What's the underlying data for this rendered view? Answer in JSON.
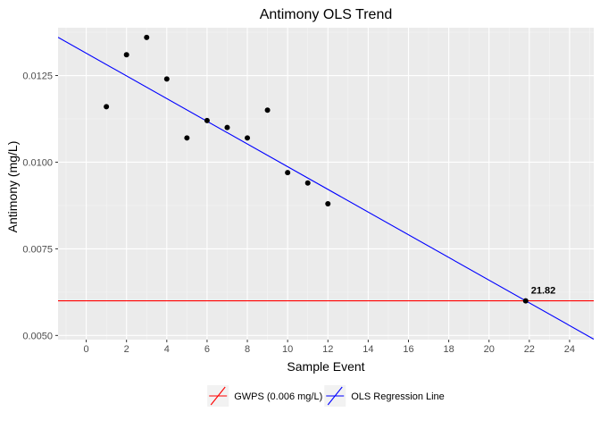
{
  "chart_data": {
    "type": "scatter",
    "title": "Antimony OLS Trend",
    "xlabel": "Sample Event",
    "ylabel": "Antimony (mg/L)",
    "xlim": [
      -1.4,
      25.2
    ],
    "ylim": [
      0.00488,
      0.01388
    ],
    "x_ticks": [
      0,
      2,
      4,
      6,
      8,
      10,
      12,
      14,
      16,
      18,
      20,
      22,
      24
    ],
    "y_ticks": [
      0.005,
      0.0075,
      0.01,
      0.0125
    ],
    "y_tick_labels": [
      "0.0050",
      "0.0075",
      "0.0100",
      "0.0125"
    ],
    "grid": true,
    "legend_position": "bottom",
    "points": [
      {
        "x": 1,
        "y": 0.0116
      },
      {
        "x": 2,
        "y": 0.0131
      },
      {
        "x": 3,
        "y": 0.0136
      },
      {
        "x": 4,
        "y": 0.0124
      },
      {
        "x": 5,
        "y": 0.0107
      },
      {
        "x": 6,
        "y": 0.0112
      },
      {
        "x": 7,
        "y": 0.011
      },
      {
        "x": 8,
        "y": 0.0107
      },
      {
        "x": 9,
        "y": 0.0115
      },
      {
        "x": 10,
        "y": 0.0097
      },
      {
        "x": 11,
        "y": 0.0094
      },
      {
        "x": 12,
        "y": 0.0088
      }
    ],
    "highlight_point": {
      "x": 21.82,
      "y": 0.006,
      "label": "21.82"
    },
    "lines": [
      {
        "name": "GWPS (0.006 mg/L)",
        "kind": "hline",
        "y": 0.006,
        "color": "#ff0000"
      },
      {
        "name": "OLS Regression Line",
        "kind": "abline",
        "intercept": 0.013144,
        "slope": -0.0003274,
        "color": "#0000ff"
      }
    ],
    "colors": {
      "panel": "#ebebeb",
      "grid_major": "#ffffff",
      "point": "#000000"
    }
  }
}
